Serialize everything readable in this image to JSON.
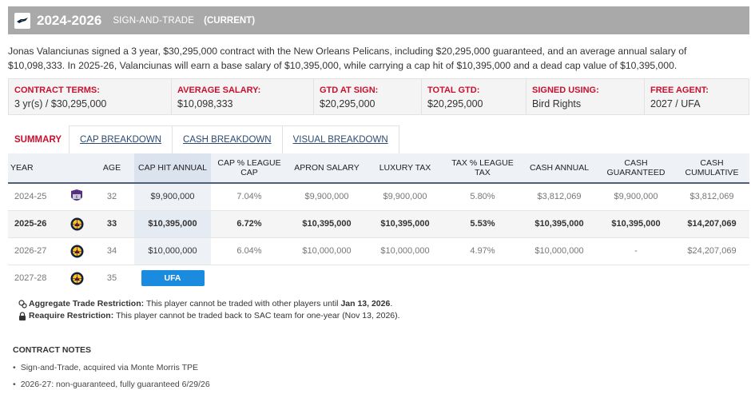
{
  "header": {
    "years": "2024-2026",
    "type": "SIGN-AND-TRADE",
    "status": "(CURRENT)"
  },
  "summary": "Jonas Valanciunas signed a 3 year, $30,295,000 contract with the New Orleans Pelicans, including $20,295,000 guaranteed, and an average annual salary of $10,098,333. In 2025-26, Valanciunas will earn a base salary of $10,395,000, while carrying a cap hit of $10,395,000 and a dead cap value of $10,395,000.",
  "terms": [
    {
      "label": "CONTRACT TERMS:",
      "value": "3 yr(s) / $30,295,000"
    },
    {
      "label": "AVERAGE SALARY:",
      "value": "$10,098,333"
    },
    {
      "label": "GTD AT SIGN:",
      "value": "$20,295,000"
    },
    {
      "label": "TOTAL GTD:",
      "value": "$20,295,000"
    },
    {
      "label": "SIGNED USING:",
      "value": "Bird Rights"
    },
    {
      "label": "FREE AGENT:",
      "value": "2027 / UFA"
    }
  ],
  "tabs": [
    {
      "label": "SUMMARY",
      "active": true
    },
    {
      "label": "CAP BREAKDOWN",
      "active": false
    },
    {
      "label": "CASH BREAKDOWN",
      "active": false
    },
    {
      "label": "VISUAL BREAKDOWN",
      "active": false
    }
  ],
  "table": {
    "headers": {
      "year": "YEAR",
      "age": "AGE",
      "cap_hit": "CAP HIT ANNUAL",
      "cap_pct": "CAP % LEAGUE CAP",
      "apron": "APRON SALARY",
      "luxury": "LUXURY TAX",
      "tax_pct": "TAX % LEAGUE TAX",
      "cash_annual": "CASH ANNUAL",
      "cash_gtd": "CASH GUARANTEED",
      "cash_cum": "CASH CUMULATIVE"
    },
    "rows": [
      {
        "year": "2024-25",
        "team_icon": "kings-logo-icon",
        "age": "32",
        "cap_hit": "$9,900,000",
        "cap_pct": "7.04%",
        "apron": "$9,900,000",
        "luxury": "$9,900,000",
        "tax_pct": "5.80%",
        "cash_annual": "$3,812,069",
        "cash_gtd": "$9,900,000",
        "cash_cum": "$3,812,069"
      },
      {
        "year": "2025-26",
        "team_icon": "nuggets-logo-icon",
        "age": "33",
        "cap_hit": "$10,395,000",
        "cap_pct": "6.72%",
        "apron": "$10,395,000",
        "luxury": "$10,395,000",
        "tax_pct": "5.53%",
        "cash_annual": "$10,395,000",
        "cash_gtd": "$10,395,000",
        "cash_cum": "$14,207,069"
      },
      {
        "year": "2026-27",
        "team_icon": "nuggets-logo-icon",
        "age": "34",
        "cap_hit": "$10,000,000",
        "cap_pct": "6.04%",
        "apron": "$10,000,000",
        "luxury": "$10,000,000",
        "tax_pct": "4.97%",
        "cash_annual": "$10,000,000",
        "cash_gtd": "-",
        "cash_cum": "$24,207,069"
      },
      {
        "year": "2027-28",
        "team_icon": "nuggets-logo-icon",
        "age": "35",
        "ufa": "UFA"
      }
    ]
  },
  "restrictions": {
    "aggregate_label": "Aggregate Trade Restriction:",
    "aggregate_text": "This player cannot be traded with other players until",
    "aggregate_date": "Jan 13, 2026",
    "aggregate_end": ".",
    "reacquire_label": "Reaquire Restriction:",
    "reacquire_text": "This player cannot be traded back to SAC team for one-year (Nov 13, 2026)."
  },
  "notes": {
    "title": "CONTRACT NOTES",
    "items": [
      "Sign-and-Trade, acquired via Monte Morris TPE",
      "2026-27: non-guaranteed, fully guaranteed 6/29/26"
    ]
  },
  "colors": {
    "accent_red": "#c8102e",
    "header_gray": "#a9a9a9",
    "ufa_blue": "#1b8bdf",
    "link_blue": "#2c4a70"
  }
}
